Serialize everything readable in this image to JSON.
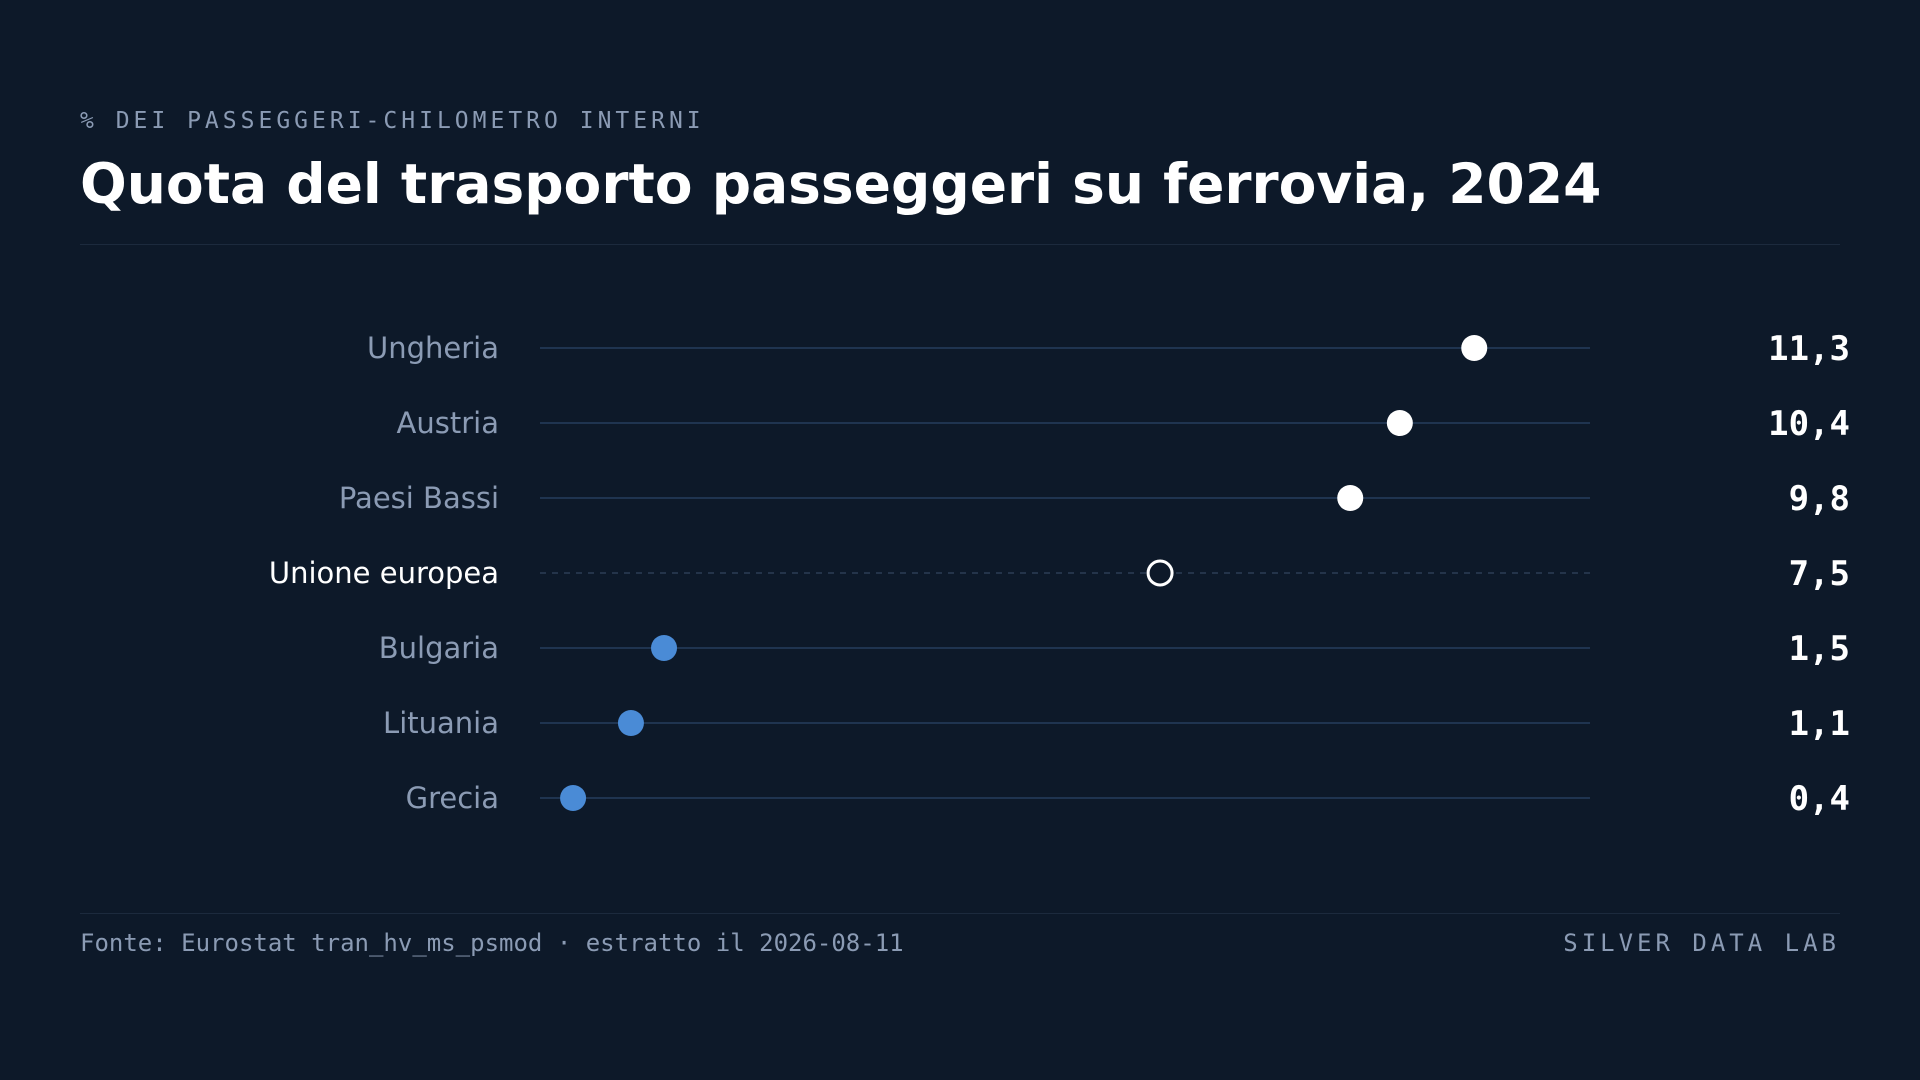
{
  "header": {
    "subtitle": "% DEI PASSEGGERI-CHILOMETRO INTERNI",
    "title": "Quota del trasporto passeggeri su ferrovia, 2024"
  },
  "footer": {
    "source": "Fonte: Eurostat tran_hv_ms_psmod · estratto il 2026-08-11",
    "brand": "SILVER DATA LAB"
  },
  "colors": {
    "background": "#0d1929",
    "track": "#1f3450",
    "high": "#ffffff",
    "low": "#4a8bd6",
    "reference": "#ffffff",
    "label_muted": "#8b9bb4",
    "label_highlight": "#ffffff"
  },
  "chart_data": {
    "type": "scatter",
    "subtype": "dot-plot",
    "title": "Quota del trasporto passeggeri su ferrovia, 2024",
    "subtitle": "% DEI PASSEGGERI-CHILOMETRO INTERNI",
    "xlim": [
      0,
      12.7
    ],
    "grid": false,
    "legend": "none",
    "categories": [
      "Ungheria",
      "Austria",
      "Paesi Bassi",
      "Unione europea",
      "Bulgaria",
      "Lituania",
      "Grecia"
    ],
    "values": [
      11.3,
      10.4,
      9.8,
      7.5,
      1.5,
      1.1,
      0.4
    ],
    "value_labels": [
      "11,3",
      "10,4",
      "9,8",
      "7,5",
      "1,5",
      "1,1",
      "0,4"
    ],
    "groups": [
      "high",
      "high",
      "high",
      "reference",
      "low",
      "low",
      "low"
    ]
  }
}
